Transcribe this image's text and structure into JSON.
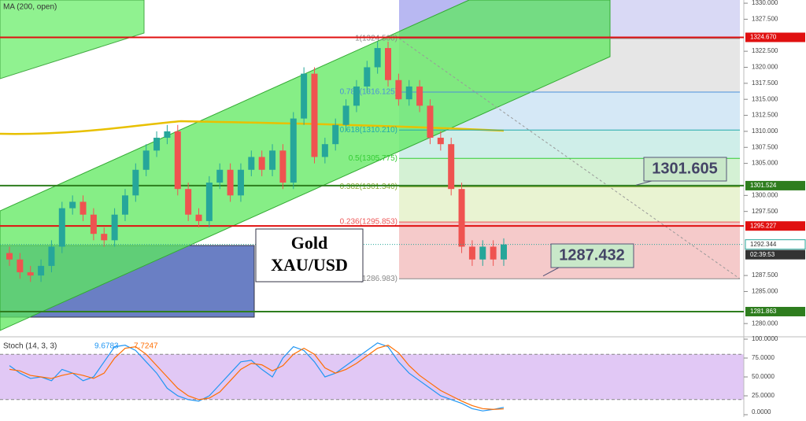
{
  "chart_data": {
    "type": "candlestick",
    "indicator_label": "MA (200, open)",
    "annotation_title": [
      "Gold",
      "XAU/USD"
    ],
    "ylim": [
      1278.3,
      1330.5
    ],
    "yticks": [
      {
        "value": 1330,
        "label": "1330.000"
      },
      {
        "value": 1327.5,
        "label": "1327.500"
      },
      {
        "value": 1322.5,
        "label": "1322.500"
      },
      {
        "value": 1320,
        "label": "1320.000"
      },
      {
        "value": 1317.5,
        "label": "1317.500"
      },
      {
        "value": 1315,
        "label": "1315.000"
      },
      {
        "value": 1312.5,
        "label": "1312.500"
      },
      {
        "value": 1310,
        "label": "1310.000"
      },
      {
        "value": 1307.5,
        "label": "1307.500"
      },
      {
        "value": 1305,
        "label": "1305.000"
      },
      {
        "value": 1300,
        "label": "1300.000"
      },
      {
        "value": 1297.5,
        "label": "1297.500"
      },
      {
        "value": 1287.5,
        "label": "1287.500"
      },
      {
        "value": 1285,
        "label": "1285.000"
      },
      {
        "value": 1280,
        "label": "1280.000"
      }
    ],
    "open": [
      1291,
      1290,
      1288,
      1287.5,
      1289,
      1292,
      1298,
      1299,
      1297,
      1294,
      1293,
      1297,
      1300,
      1304,
      1307,
      1309,
      1310,
      1301,
      1297,
      1296,
      1302,
      1304,
      1300,
      1304,
      1306,
      1304,
      1307,
      1302,
      1312,
      1319,
      1306,
      1308,
      1311,
      1314,
      1317,
      1320,
      1323,
      1318,
      1315,
      1317,
      1314,
      1309,
      1308,
      1301,
      1292,
      1290,
      1292,
      1290
    ],
    "high": [
      1292,
      1291,
      1289,
      1290,
      1293,
      1299,
      1300,
      1300,
      1298,
      1295,
      1298,
      1301,
      1305,
      1308,
      1310,
      1311,
      1311,
      1302,
      1298,
      1303,
      1305,
      1305,
      1305,
      1307,
      1307,
      1308,
      1308,
      1313,
      1320,
      1320,
      1309,
      1312,
      1315,
      1318,
      1321,
      1324,
      1324,
      1319,
      1318,
      1318,
      1315,
      1310,
      1309,
      1302,
      1293,
      1293,
      1293,
      1293.3
    ],
    "low": [
      1289,
      1287,
      1286.5,
      1286.5,
      1288,
      1291,
      1297,
      1296,
      1293,
      1292,
      1292,
      1296,
      1299,
      1303,
      1306,
      1308,
      1300,
      1296,
      1295,
      1295,
      1301,
      1299,
      1299,
      1303,
      1303,
      1303,
      1301,
      1301,
      1311,
      1305,
      1305,
      1307,
      1310,
      1313,
      1316,
      1319,
      1317,
      1314,
      1314,
      1313,
      1308,
      1307,
      1300,
      1291,
      1289,
      1289,
      1289,
      1289
    ],
    "close": [
      1290,
      1288,
      1287.5,
      1289,
      1292,
      1298,
      1299,
      1297,
      1294,
      1293,
      1297,
      1300,
      1304,
      1307,
      1309,
      1310,
      1301,
      1297,
      1296,
      1302,
      1304,
      1300,
      1304,
      1306,
      1304,
      1307,
      1302,
      1312,
      1319,
      1306,
      1308,
      1311,
      1314,
      1317,
      1320,
      1323,
      1318,
      1315,
      1317,
      1314,
      1309,
      1308,
      1301,
      1292,
      1290,
      1292,
      1290,
      1292.344
    ],
    "up_color": "#26a69a",
    "down_color": "#ef5350",
    "levels": [
      {
        "value": 1324.67,
        "label": "1324.670",
        "color": "#e01010"
      },
      {
        "value": 1301.524,
        "label": "1301.524",
        "color": "#2e7d1e"
      },
      {
        "value": 1295.227,
        "label": "1295.227",
        "color": "#e01010"
      },
      {
        "value": 1281.863,
        "label": "1281.863",
        "color": "#2e7d1e"
      }
    ],
    "last_price": {
      "value": 1292.344,
      "label": "1292.344"
    },
    "countdown": "02:39:53",
    "fib": [
      {
        "value": 1324.5,
        "label": "1(1324.500)"
      },
      {
        "value": 1316.125,
        "label": "0.786(1316.125)"
      },
      {
        "value": 1310.21,
        "label": "0.618(1310.210)"
      },
      {
        "value": 1305.775,
        "label": "0.5(1305.775)"
      },
      {
        "value": 1301.34,
        "label": "0.382(1301.340)"
      },
      {
        "value": 1295.853,
        "label": "0.236(1295.853)"
      },
      {
        "value": 1286.983,
        "label": "0(1286.983)"
      }
    ],
    "callouts": [
      {
        "value": 1301.605,
        "label": "1301.605"
      },
      {
        "value": 1287.432,
        "label": "1287.432"
      }
    ],
    "stoch": {
      "title": "Stoch (14, 3, 3)",
      "ylim": [
        0,
        100
      ],
      "yticks": [
        {
          "value": 100,
          "label": "100.0000"
        },
        {
          "value": 75,
          "label": "75.0000"
        },
        {
          "value": 50,
          "label": "50.0000"
        },
        {
          "value": 25,
          "label": "25.0000"
        },
        {
          "value": 0,
          "label": "0.0000"
        }
      ],
      "series": [
        {
          "name": "9.6783",
          "color": "#2196f3",
          "values": [
            65,
            55,
            48,
            50,
            45,
            60,
            55,
            45,
            50,
            70,
            90,
            92,
            85,
            70,
            55,
            35,
            25,
            20,
            18,
            25,
            40,
            55,
            70,
            72,
            60,
            50,
            75,
            90,
            85,
            70,
            50,
            55,
            65,
            75,
            85,
            95,
            90,
            70,
            55,
            45,
            35,
            25,
            20,
            15,
            8,
            5,
            7,
            9.6783
          ]
        },
        {
          "name": "7.7247",
          "color": "#ff6d00",
          "values": [
            60,
            58,
            52,
            50,
            48,
            52,
            55,
            52,
            48,
            55,
            75,
            88,
            90,
            80,
            65,
            50,
            35,
            25,
            20,
            22,
            30,
            45,
            60,
            68,
            66,
            58,
            65,
            80,
            88,
            80,
            62,
            55,
            60,
            68,
            78,
            88,
            92,
            82,
            65,
            52,
            42,
            32,
            25,
            18,
            12,
            8,
            7,
            7.7247
          ]
        }
      ]
    }
  }
}
